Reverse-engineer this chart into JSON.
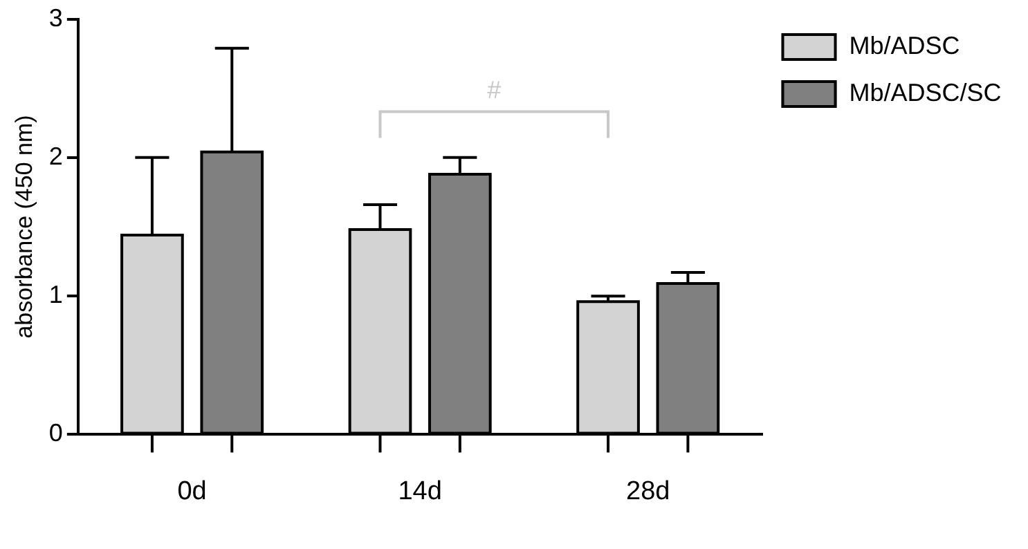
{
  "chart_data": {
    "type": "bar",
    "ylabel": "absorbance (450 nm)",
    "categories": [
      "0d",
      "14d",
      "28d"
    ],
    "series": [
      {
        "name": "Mb/ADSC",
        "color": "#d3d3d3",
        "values": [
          1.44,
          1.48,
          0.96
        ],
        "errors": [
          [
            1.44,
            2.0
          ],
          [
            1.48,
            1.66
          ],
          [
            0.96,
            1.0
          ]
        ]
      },
      {
        "name": "Mb/ADSC/SC",
        "color": "#808080",
        "values": [
          2.04,
          1.88,
          1.09
        ],
        "errors": [
          [
            2.04,
            2.79
          ],
          [
            1.88,
            2.0
          ],
          [
            1.09,
            1.17
          ]
        ]
      }
    ],
    "ylim": [
      0,
      3
    ],
    "yticks": [
      0,
      1,
      2,
      3
    ],
    "grid": false,
    "legend": "top right",
    "annotations": [
      "#"
    ]
  }
}
